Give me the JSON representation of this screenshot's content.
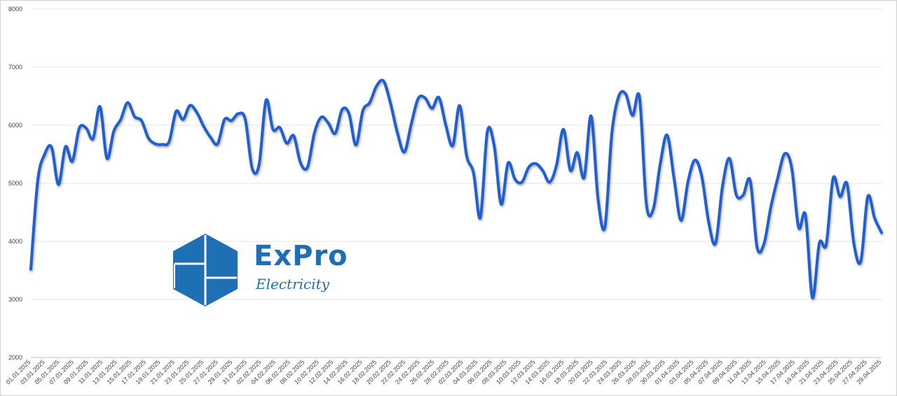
{
  "logo": {
    "name": "ExPro",
    "tagline": "Electricity",
    "color": "#1f6fb5",
    "icon": "hexagon-cube-icon"
  },
  "chart_data": {
    "type": "line",
    "title": "",
    "xlabel": "",
    "ylabel": "",
    "ylim": [
      2000,
      8000
    ],
    "yticks": [
      2000,
      3000,
      4000,
      5000,
      6000,
      7000,
      8000
    ],
    "grid": true,
    "legend": "none",
    "line_color": "#1f5fd0",
    "x_tick_labels": [
      "01.01.2025",
      "03.01.2025",
      "05.01.2025",
      "07.01.2025",
      "09.01.2025",
      "11.01.2025",
      "13.01.2025",
      "15.01.2025",
      "17.01.2025",
      "19.01.2025",
      "21.01.2025",
      "23.01.2025",
      "25.01.2025",
      "27.01.2025",
      "29.01.2025",
      "31.01.2025",
      "02.02.2025",
      "04.02.2025",
      "06.02.2025",
      "08.02.2025",
      "10.02.2025",
      "12.02.2025",
      "14.02.2025",
      "16.02.2025",
      "18.02.2025",
      "20.02.2025",
      "22.02.2025",
      "24.02.2025",
      "26.02.2025",
      "28.02.2025",
      "02.03.2025",
      "04.03.2025",
      "06.03.2025",
      "08.03.2025",
      "10.03.2025",
      "12.03.2025",
      "14.03.2025",
      "16.03.2025",
      "18.03.2025",
      "20.03.2025",
      "22.03.2025",
      "24.03.2025",
      "26.03.2025",
      "28.03.2025",
      "30.03.2025",
      "01.04.2025",
      "03.04.2025",
      "05.04.2025",
      "07.04.2025",
      "09.04.2025",
      "11.04.2025",
      "13.04.2025",
      "15.04.2025",
      "17.04.2025",
      "19.04.2025",
      "21.04.2025",
      "23.04.2025",
      "25.04.2025",
      "27.04.2025",
      "29.04.2025"
    ],
    "series": [
      {
        "values": [
          3520,
          5050,
          5500,
          5620,
          4980,
          5630,
          5380,
          5950,
          5950,
          5770,
          6320,
          5430,
          5900,
          6100,
          6390,
          6150,
          6080,
          5780,
          5680,
          5670,
          5720,
          6240,
          6100,
          6340,
          6220,
          5980,
          5790,
          5680,
          6100,
          6080,
          6200,
          6100,
          5260,
          5320,
          6430,
          5930,
          5960,
          5690,
          5820,
          5350,
          5280,
          5870,
          6140,
          6040,
          5860,
          6270,
          6200,
          5660,
          6250,
          6390,
          6680,
          6760,
          6380,
          5870,
          5540,
          6020,
          6460,
          6470,
          6290,
          6480,
          6000,
          5650,
          6340,
          5480,
          5180,
          4410,
          5890,
          5640,
          4640,
          5350,
          5070,
          5020,
          5280,
          5340,
          5220,
          5020,
          5310,
          5930,
          5220,
          5530,
          5100,
          6160,
          4740,
          4250,
          5860,
          6500,
          6540,
          6170,
          6480,
          4640,
          4560,
          5340,
          5830,
          5080,
          4360,
          5020,
          5400,
          5120,
          4330,
          3970,
          4950,
          5430,
          4800,
          4800,
          5050,
          3900,
          3960,
          4600,
          5100,
          5510,
          5270,
          4240,
          4450,
          3030,
          3970,
          3950,
          5090,
          4770,
          4990,
          3960,
          3660,
          4770,
          4400,
          4150
        ]
      }
    ]
  }
}
